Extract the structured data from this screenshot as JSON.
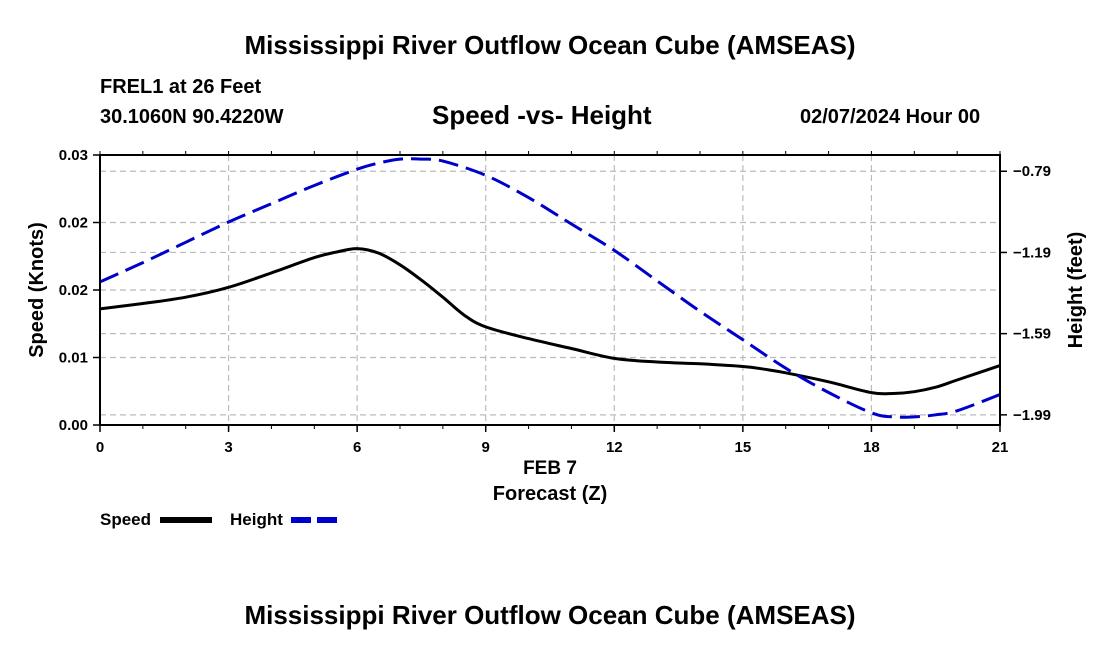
{
  "header": {
    "title": "Mississippi River Outflow Ocean Cube (AMSEAS)",
    "station": "FREL1 at 26 Feet",
    "coords": "30.1060N  90.4220W",
    "subtitle": "Speed -vs- Height",
    "datetime": "02/07/2024 Hour 00"
  },
  "footer": {
    "title": "Mississippi River Outflow Ocean Cube (AMSEAS)"
  },
  "legend": {
    "speed_label": "Speed",
    "height_label": "Height"
  },
  "colors": {
    "speed": "#000000",
    "height": "#0000cc",
    "grid": "#bbbbbb"
  },
  "chart_data": {
    "type": "line",
    "title": "Speed -vs- Height",
    "xlabel": "Forecast (Z)",
    "xlabel_date": "FEB 7",
    "ylabel": "Speed (Knots)",
    "y2label": "Height (feet)",
    "xlim": [
      0,
      21
    ],
    "ylim": [
      0,
      0.03
    ],
    "y2lim": [
      -2.04,
      -0.71
    ],
    "x_ticks": [
      0,
      3,
      6,
      9,
      12,
      15,
      18,
      21
    ],
    "y_ticks": [
      0,
      0.0075,
      0.015,
      0.0225,
      0.03
    ],
    "y_tick_labels": [
      "0.00",
      "0.01",
      "0.02",
      "0.02",
      "0.03"
    ],
    "y2_ticks": [
      -0.79,
      -1.19,
      -1.59,
      -1.99
    ],
    "y2_tick_labels": [
      "−0.79",
      "−1.19",
      "−1.59",
      "−1.99"
    ],
    "grid": true,
    "series": [
      {
        "name": "Speed",
        "axis": "left",
        "x": [
          0,
          1,
          2,
          3,
          4,
          5,
          5.5,
          6,
          6.5,
          7,
          7.5,
          8,
          8.5,
          9,
          10,
          11,
          12,
          13,
          14,
          15,
          15.5,
          16,
          17,
          18,
          18.5,
          19,
          19.5,
          20,
          21
        ],
        "values": [
          0.0129,
          0.0135,
          0.0142,
          0.0153,
          0.0169,
          0.0186,
          0.0192,
          0.0196,
          0.0191,
          0.0178,
          0.0161,
          0.0142,
          0.0122,
          0.0109,
          0.0096,
          0.0085,
          0.0074,
          0.007,
          0.0068,
          0.0065,
          0.0062,
          0.0058,
          0.0048,
          0.0036,
          0.0035,
          0.0037,
          0.0042,
          0.005,
          0.0066
        ]
      },
      {
        "name": "Height",
        "axis": "right",
        "x": [
          0,
          1,
          2,
          3,
          4,
          5,
          6,
          6.5,
          7,
          7.5,
          8,
          9,
          10,
          11,
          12,
          13,
          14,
          15,
          16,
          17,
          18,
          18.5,
          19,
          19.5,
          20,
          21
        ],
        "values": [
          -1.335,
          -1.24,
          -1.14,
          -1.04,
          -0.95,
          -0.86,
          -0.78,
          -0.75,
          -0.73,
          -0.73,
          -0.74,
          -0.81,
          -0.92,
          -1.05,
          -1.18,
          -1.33,
          -1.48,
          -1.62,
          -1.76,
          -1.88,
          -1.98,
          -2.0,
          -2.0,
          -1.99,
          -1.97,
          -1.89
        ]
      }
    ]
  }
}
